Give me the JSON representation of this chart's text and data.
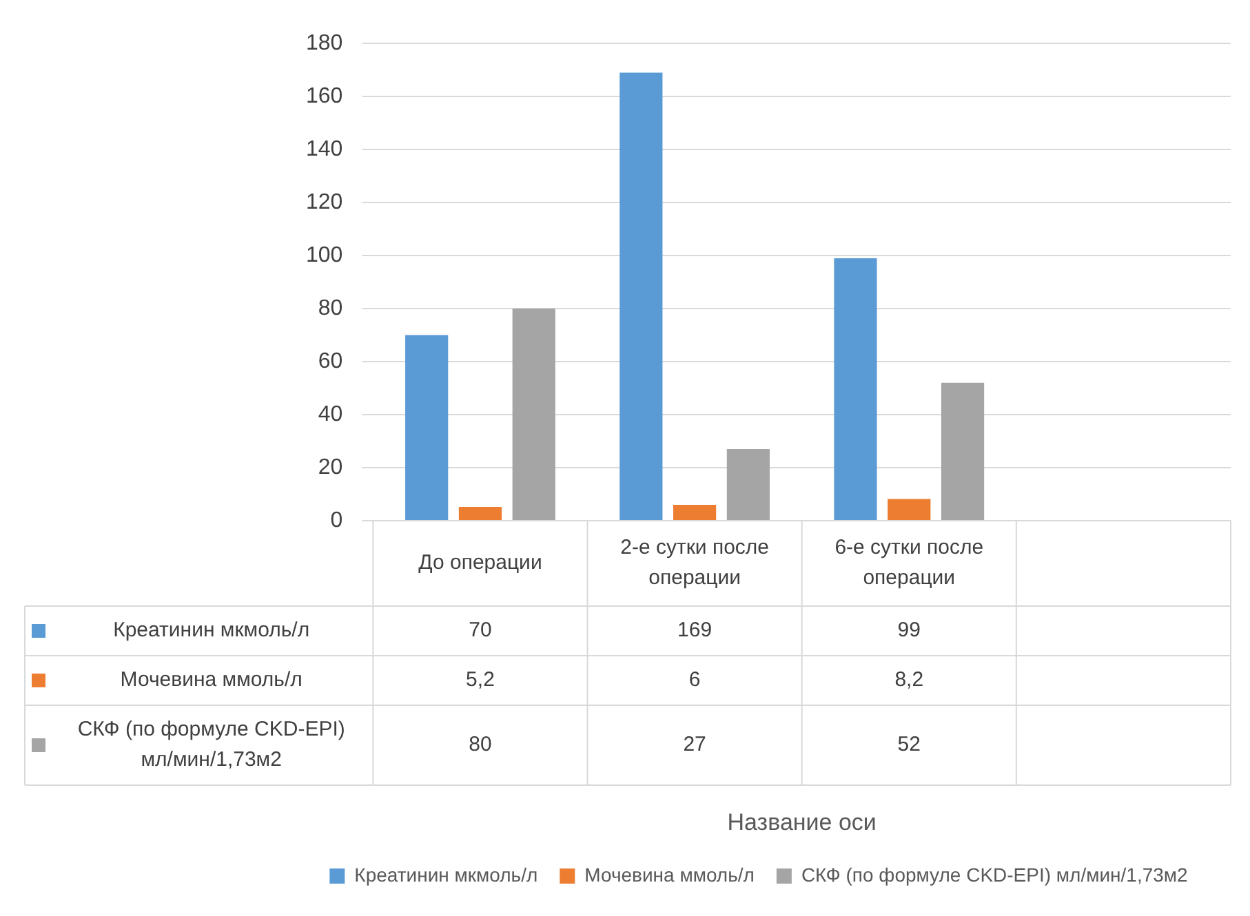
{
  "chart_data": {
    "type": "bar",
    "annotations": [
      "Название оси"
    ],
    "categories": [
      "До операции",
      "2-е сутки после операции",
      "6-е сутки после операции",
      null
    ],
    "series": [
      {
        "name": "Креатинин мкмоль/л",
        "color": "#5b9bd5",
        "values": [
          70,
          169,
          99,
          null
        ],
        "value_labels": [
          "70",
          "169",
          "99",
          null
        ]
      },
      {
        "name": "Мочевина ммоль/л",
        "color": "#ed7d31",
        "values": [
          5.2,
          6,
          8.2,
          null
        ],
        "value_labels": [
          "5,2",
          "6",
          "8,2",
          null
        ]
      },
      {
        "name": "СКФ (по формуле CKD-EPI) мл/мин/1,73м2",
        "color": "#a5a5a5",
        "values": [
          80,
          27,
          52,
          null
        ],
        "value_labels": [
          "80",
          "27",
          "52",
          null
        ]
      }
    ],
    "ylim": [
      0,
      180
    ],
    "yticks": [
      0,
      20,
      40,
      60,
      80,
      100,
      120,
      140,
      160,
      180
    ],
    "grid": "y",
    "legend": "bottom"
  }
}
